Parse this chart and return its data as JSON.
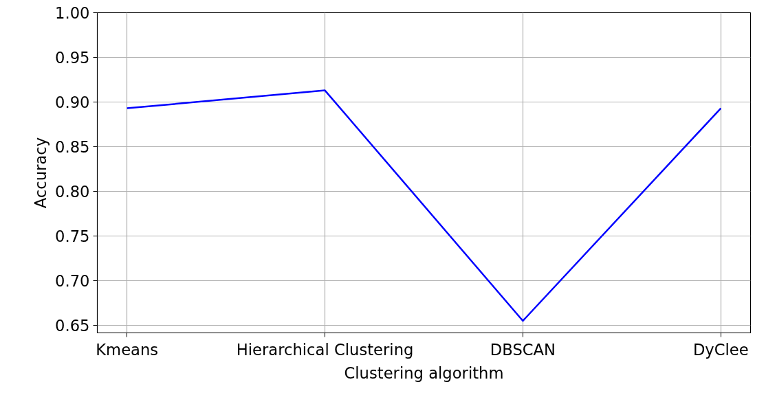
{
  "chart_data": {
    "type": "line",
    "xlabel": "Clustering algorithm",
    "ylabel": "Accuracy",
    "categories": [
      "Kmeans",
      "Hierarchical Clustering",
      "DBSCAN",
      "DyClee"
    ],
    "series": [
      {
        "color": "#0000ff",
        "values": [
          0.893,
          0.913,
          0.655,
          0.893
        ]
      }
    ],
    "ylim": [
      0.6415,
      1.0
    ],
    "yticks": [
      {
        "value": 0.65,
        "label": "0.65"
      },
      {
        "value": 0.7,
        "label": "0.70"
      },
      {
        "value": 0.75,
        "label": "0.75"
      },
      {
        "value": 0.8,
        "label": "0.80"
      },
      {
        "value": 0.85,
        "label": "0.85"
      },
      {
        "value": 0.9,
        "label": "0.90"
      },
      {
        "value": 0.95,
        "label": "0.95"
      },
      {
        "value": 1.0,
        "label": "1.00"
      }
    ],
    "grid": true,
    "line_style": "solid"
  }
}
